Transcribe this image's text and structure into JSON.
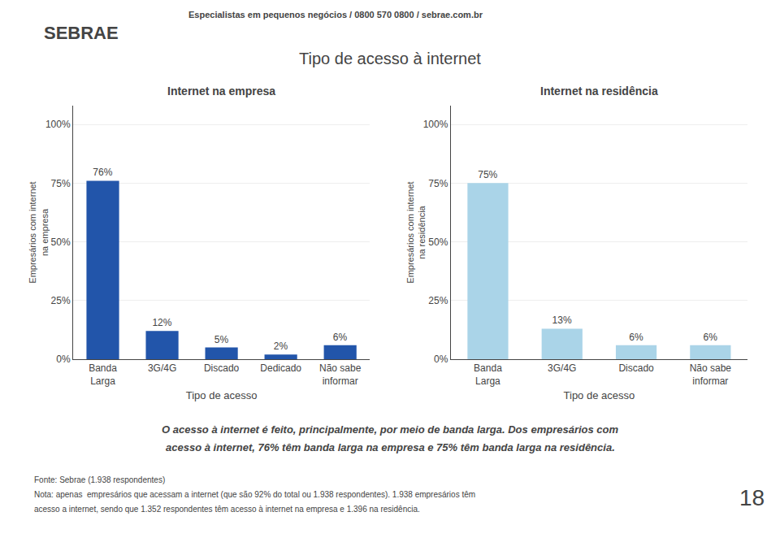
{
  "title": "Tipo de acesso à internet",
  "annotations": [
    {
      "text": "Especialistas em pequenos negócios / 0800 570 0800 / sebrae.com.br"
    },
    {
      "text": "SEBRAE"
    },
    {
      "text": "O acesso à internet é feito, principalmente, por meio de banda larga. Dos empresários com"
    },
    {
      "text": "acesso à internet, 76% têm banda larga na empresa e 75% têm banda larga na residência."
    },
    {
      "text": "Fonte: Sebrae (1.938 respondentes)"
    },
    {
      "text": "Nota: apenas  empresários que acessam a internet (que são 92% do total ou 1.938 respondentes). 1.938 empresários têm"
    },
    {
      "text": "acesso a internet, sendo que 1.352 respondentes têm acesso à internet na empresa e 1.396 na residência."
    },
    {
      "text": "18"
    }
  ],
  "chart_data": [
    {
      "type": "bar",
      "title": "Internet na empresa",
      "xlabel": "Tipo de acesso",
      "ylabel": "Empresários com internet\nna empresa",
      "categories": [
        "Banda\nLarga",
        "3G/4G",
        "Discado",
        "Dedicado",
        "Não sabe\ninformar"
      ],
      "values": [
        76,
        12,
        5,
        2,
        6
      ],
      "value_labels": [
        "76%",
        "12%",
        "5%",
        "2%",
        "6%"
      ],
      "color": "#2255aa",
      "ylim": [
        0,
        108
      ],
      "yticks": [
        {
          "value": 0,
          "label": "0%"
        },
        {
          "value": 25,
          "label": "25%"
        },
        {
          "value": 50,
          "label": "50%"
        },
        {
          "value": 75,
          "label": "75%"
        },
        {
          "value": 100,
          "label": "100%"
        }
      ],
      "grid": true,
      "data_labels": true
    },
    {
      "type": "bar",
      "title": "Internet na residência",
      "xlabel": "Tipo de acesso",
      "ylabel": "Empresários com internet\nna residência",
      "categories": [
        "Banda\nLarga",
        "3G/4G",
        "Discado",
        "Não sabe\ninformar"
      ],
      "values": [
        75,
        13,
        6,
        6
      ],
      "value_labels": [
        "75%",
        "13%",
        "6%",
        "6%"
      ],
      "color": "#aad4e8",
      "ylim": [
        0,
        108
      ],
      "yticks": [
        {
          "value": 0,
          "label": "0%"
        },
        {
          "value": 25,
          "label": "25%"
        },
        {
          "value": 50,
          "label": "50%"
        },
        {
          "value": 75,
          "label": "75%"
        },
        {
          "value": 100,
          "label": "100%"
        }
      ],
      "grid": true,
      "data_labels": true
    }
  ]
}
